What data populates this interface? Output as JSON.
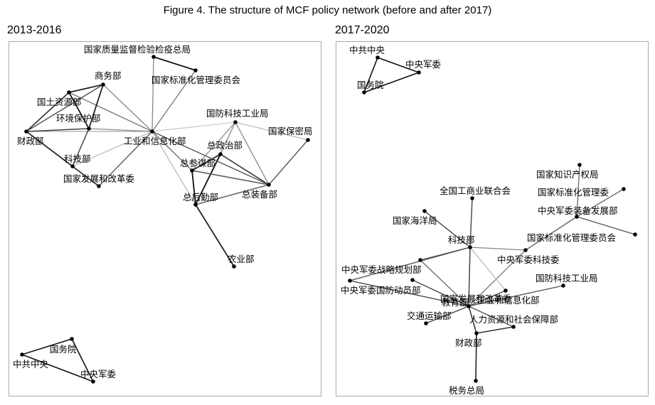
{
  "figure": {
    "title": "Figure 4. The structure of MCF policy network (before and after 2017)"
  },
  "panels": [
    {
      "title": "2013-2016",
      "nodes": [
        {
          "id": "zljj",
          "label": "国家质量监督检验检疫总局"
        },
        {
          "id": "bzh",
          "label": "国家标准化管理委员会"
        },
        {
          "id": "swb",
          "label": "商务部"
        },
        {
          "id": "gtzy",
          "label": "国土资源部"
        },
        {
          "id": "hjbh",
          "label": "环境保护部"
        },
        {
          "id": "czb",
          "label": "财政部"
        },
        {
          "id": "gyxx",
          "label": "工业和信息化部"
        },
        {
          "id": "kjb",
          "label": "科技部"
        },
        {
          "id": "fgw",
          "label": "国家发展和改革委"
        },
        {
          "id": "gfkj",
          "label": "国防科技工业局"
        },
        {
          "id": "bmj",
          "label": "国家保密局"
        },
        {
          "id": "zzz",
          "label": "总政治部"
        },
        {
          "id": "zcm",
          "label": "总参谋部"
        },
        {
          "id": "zzb",
          "label": "总装备部"
        },
        {
          "id": "zhq",
          "label": "总后勤部"
        },
        {
          "id": "nyb",
          "label": "农业部"
        },
        {
          "id": "gwy",
          "label": "国务院"
        },
        {
          "id": "zgzy",
          "label": "中共中央"
        },
        {
          "id": "zyjw",
          "label": "中央军委"
        }
      ],
      "edges": [
        {
          "s": "zljj",
          "t": "bzh",
          "c": "#111111",
          "w": 1.8
        },
        {
          "s": "zljj",
          "t": "gyxx",
          "c": "#888888",
          "w": 1.3
        },
        {
          "s": "bzh",
          "t": "gyxx",
          "c": "#777777",
          "w": 1.3
        },
        {
          "s": "swb",
          "t": "gyxx",
          "c": "#888888",
          "w": 1.3
        },
        {
          "s": "gtzy",
          "t": "gyxx",
          "c": "#777777",
          "w": 1.3
        },
        {
          "s": "czb",
          "t": "gyxx",
          "c": "#aaaaaa",
          "w": 1.3
        },
        {
          "s": "hjbh",
          "t": "gyxx",
          "c": "#888888",
          "w": 1.3
        },
        {
          "s": "kjb",
          "t": "gyxx",
          "c": "#bbbbbb",
          "w": 1.3
        },
        {
          "s": "fgw",
          "t": "gyxx",
          "c": "#555555",
          "w": 1.3
        },
        {
          "s": "gfkj",
          "t": "gyxx",
          "c": "#cccccc",
          "w": 1.3
        },
        {
          "s": "zcm",
          "t": "gyxx",
          "c": "#666666",
          "w": 1.3
        },
        {
          "s": "zhq",
          "t": "gyxx",
          "c": "#bbbbbb",
          "w": 1.3
        },
        {
          "s": "gtzy",
          "t": "swb",
          "c": "#222222",
          "w": 1.8
        },
        {
          "s": "gtzy",
          "t": "hjbh",
          "c": "#111111",
          "w": 1.8
        },
        {
          "s": "swb",
          "t": "hjbh",
          "c": "#222222",
          "w": 1.8
        },
        {
          "s": "gtzy",
          "t": "czb",
          "c": "#333333",
          "w": 1.6
        },
        {
          "s": "czb",
          "t": "swb",
          "c": "#555555",
          "w": 1.5
        },
        {
          "s": "czb",
          "t": "hjbh",
          "c": "#444444",
          "w": 1.5
        },
        {
          "s": "czb",
          "t": "kjb",
          "c": "#333333",
          "w": 1.6
        },
        {
          "s": "czb",
          "t": "fgw",
          "c": "#222222",
          "w": 1.6
        },
        {
          "s": "kjb",
          "t": "hjbh",
          "c": "#444444",
          "w": 1.5
        },
        {
          "s": "gfkj",
          "t": "bmj",
          "c": "#bbbbbb",
          "w": 1.3
        },
        {
          "s": "gfkj",
          "t": "zzz",
          "c": "#999999",
          "w": 1.3
        },
        {
          "s": "gfkj",
          "t": "zcm",
          "c": "#888888",
          "w": 1.3
        },
        {
          "s": "gfkj",
          "t": "zzb",
          "c": "#888888",
          "w": 1.3
        },
        {
          "s": "gfkj",
          "t": "zhq",
          "c": "#999999",
          "w": 1.3
        },
        {
          "s": "bmj",
          "t": "zzb",
          "c": "#555555",
          "w": 1.4
        },
        {
          "s": "zzz",
          "t": "zcm",
          "c": "#222222",
          "w": 1.8
        },
        {
          "s": "zzz",
          "t": "zzb",
          "c": "#333333",
          "w": 1.6
        },
        {
          "s": "zzz",
          "t": "zhq",
          "c": "#111111",
          "w": 1.8
        },
        {
          "s": "zcm",
          "t": "zzb",
          "c": "#555555",
          "w": 1.5
        },
        {
          "s": "zcm",
          "t": "zhq",
          "c": "#111111",
          "w": 1.8
        },
        {
          "s": "zzb",
          "t": "zhq",
          "c": "#666666",
          "w": 1.5
        },
        {
          "s": "gyxx",
          "t": "zzb",
          "c": "#555555",
          "w": 1.4
        },
        {
          "s": "zhq",
          "t": "nyb",
          "c": "#222222",
          "w": 1.8
        },
        {
          "s": "gwy",
          "t": "zgzy",
          "c": "#111111",
          "w": 1.6
        },
        {
          "s": "zgzy",
          "t": "zyjw",
          "c": "#111111",
          "w": 1.6
        },
        {
          "s": "gwy",
          "t": "zyjw",
          "c": "#111111",
          "w": 1.6
        }
      ]
    },
    {
      "title": "2017-2020",
      "nodes": [
        {
          "id": "zgzy",
          "label": "中共中央"
        },
        {
          "id": "zyjw",
          "label": "中央军委"
        },
        {
          "id": "gwy",
          "label": "国务院"
        },
        {
          "id": "zscq",
          "label": "国家知识产权局"
        },
        {
          "id": "bzhw",
          "label": "国家标准化管理委"
        },
        {
          "id": "zbfz",
          "label": "中央军委装备发展部"
        },
        {
          "id": "bzhy",
          "label": "国家标准化管理委员会"
        },
        {
          "id": "gsl",
          "label": "全国工商业联合会"
        },
        {
          "id": "hyj",
          "label": "国家海洋局"
        },
        {
          "id": "kjb",
          "label": "科技部"
        },
        {
          "id": "jwkj",
          "label": "中央军委科技委"
        },
        {
          "id": "zlgh",
          "label": "中央军委战略规划部"
        },
        {
          "id": "fgw",
          "label": "国家发展和改革委"
        },
        {
          "id": "gfkj",
          "label": "国防科技工业局"
        },
        {
          "id": "gfdy",
          "label": "中央军委国防动员部"
        },
        {
          "id": "jyb",
          "label": "教育部"
        },
        {
          "id": "gyxx",
          "label": "工业和信息化部"
        },
        {
          "id": "jtys",
          "label": "交通运输部"
        },
        {
          "id": "rlzy",
          "label": "人力资源和社会保障部"
        },
        {
          "id": "czb",
          "label": "财政部"
        },
        {
          "id": "swzj",
          "label": "税务总局"
        }
      ],
      "edges": [
        {
          "s": "zgzy",
          "t": "zyjw",
          "c": "#111111",
          "w": 1.6
        },
        {
          "s": "zgzy",
          "t": "gwy",
          "c": "#111111",
          "w": 1.6
        },
        {
          "s": "zyjw",
          "t": "gwy",
          "c": "#111111",
          "w": 1.6
        },
        {
          "s": "zscq",
          "t": "zbfz",
          "c": "#666666",
          "w": 1.3
        },
        {
          "s": "bzhw",
          "t": "zbfz",
          "c": "#555555",
          "w": 1.3
        },
        {
          "s": "bzhy",
          "t": "zbfz",
          "c": "#555555",
          "w": 1.3
        },
        {
          "s": "zbfz",
          "t": "jwkj",
          "c": "#666666",
          "w": 1.4
        },
        {
          "s": "jwkj",
          "t": "kjb",
          "c": "#888888",
          "w": 1.3
        },
        {
          "s": "jwkj",
          "t": "fgw",
          "c": "#777777",
          "w": 1.3
        },
        {
          "s": "gsl",
          "t": "kjb",
          "c": "#444444",
          "w": 1.4
        },
        {
          "s": "hyj",
          "t": "kjb",
          "c": "#444444",
          "w": 1.4
        },
        {
          "s": "kjb",
          "t": "fgw",
          "c": "#444444",
          "w": 1.5
        },
        {
          "s": "kjb",
          "t": "zlgh",
          "c": "#555555",
          "w": 1.4
        },
        {
          "s": "kjb",
          "t": "gfdy",
          "c": "#555555",
          "w": 1.4
        },
        {
          "s": "kjb",
          "t": "gyxx",
          "c": "#bbbbbb",
          "w": 1.3
        },
        {
          "s": "zlgh",
          "t": "fgw",
          "c": "#666666",
          "w": 1.3
        },
        {
          "s": "gfdy",
          "t": "fgw",
          "c": "#444444",
          "w": 1.4
        },
        {
          "s": "fgw",
          "t": "jyb",
          "c": "#444444",
          "w": 1.4
        },
        {
          "s": "fgw",
          "t": "gyxx",
          "c": "#444444",
          "w": 1.4
        },
        {
          "s": "fgw",
          "t": "gfkj",
          "c": "#555555",
          "w": 1.4
        },
        {
          "s": "fgw",
          "t": "jtys",
          "c": "#444444",
          "w": 1.4
        },
        {
          "s": "fgw",
          "t": "czb",
          "c": "#333333",
          "w": 1.5
        },
        {
          "s": "fgw",
          "t": "rlzy",
          "c": "#555555",
          "w": 1.4
        },
        {
          "s": "rlzy",
          "t": "czb",
          "c": "#333333",
          "w": 1.5
        },
        {
          "s": "czb",
          "t": "swzj",
          "c": "#222222",
          "w": 1.6
        }
      ]
    }
  ]
}
